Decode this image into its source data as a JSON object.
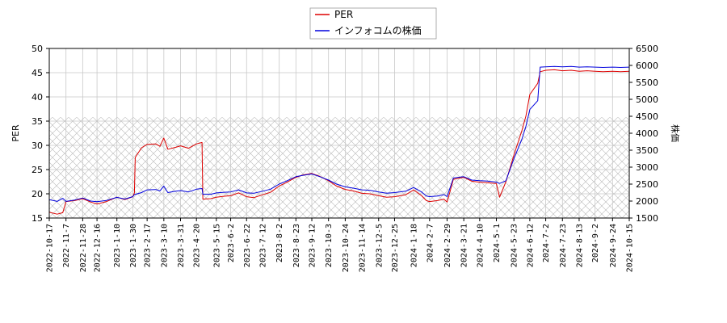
{
  "chart_data": {
    "type": "line",
    "left_axis": {
      "label": "PER",
      "range": [
        15,
        50
      ],
      "ticks": [
        "15",
        "20",
        "25",
        "30",
        "35",
        "40",
        "45",
        "50"
      ]
    },
    "right_axis": {
      "label": "株価",
      "range": [
        1500,
        6500
      ],
      "ticks": [
        "1500",
        "2000",
        "2500",
        "3000",
        "3500",
        "4000",
        "4500",
        "5000",
        "5500",
        "6000",
        "6500"
      ]
    },
    "x_ticks": [
      "2022-10-17",
      "2022-11-7",
      "2022-11-28",
      "2022-12-16",
      "2023-1-10",
      "2023-1-30",
      "2023-2-17",
      "2023-3-10",
      "2023-3-31",
      "2023-4-20",
      "2023-5-15",
      "2023-6-2",
      "2023-6-22",
      "2023-7-12",
      "2023-8-2",
      "2023-8-23",
      "2023-9-12",
      "2023-10-3",
      "2023-10-24",
      "2023-11-14",
      "2023-12-5",
      "2023-12-25",
      "2024-1-18",
      "2024-2-7",
      "2024-2-29",
      "2024-3-21",
      "2024-4-10",
      "2024-5-1",
      "2024-5-23",
      "2024-6-12",
      "2024-7-2",
      "2024-7-23",
      "2024-8-13",
      "2024-9-2",
      "2024-9-24",
      "2024-10-15"
    ],
    "grid": true,
    "shaded_band": {
      "axis": "left",
      "range": [
        15,
        35.8
      ],
      "pattern": "crosshatch"
    },
    "legend": {
      "position": "top-center"
    },
    "colors": {
      "per": "#dd0000",
      "price": "#0000dd"
    },
    "series": [
      {
        "name": "PER",
        "axis": "left",
        "color": "#dd0000",
        "points": [
          [
            "2022-10-17",
            16.2
          ],
          [
            "2022-10-27",
            15.8
          ],
          [
            "2022-11-3",
            16.1
          ],
          [
            "2022-11-7",
            18.4
          ],
          [
            "2022-11-18",
            18.6
          ],
          [
            "2022-11-28",
            19.0
          ],
          [
            "2022-12-8",
            18.3
          ],
          [
            "2022-12-16",
            17.9
          ],
          [
            "2022-12-28",
            18.4
          ],
          [
            "2023-1-10",
            19.3
          ],
          [
            "2023-1-20",
            18.8
          ],
          [
            "2023-1-30",
            19.4
          ],
          [
            "2023-2-1",
            20.2
          ],
          [
            "2023-2-2",
            27.5
          ],
          [
            "2023-2-10",
            29.5
          ],
          [
            "2023-2-17",
            30.2
          ],
          [
            "2023-2-28",
            30.3
          ],
          [
            "2023-3-5",
            29.8
          ],
          [
            "2023-3-10",
            31.5
          ],
          [
            "2023-3-15",
            29.2
          ],
          [
            "2023-3-25",
            29.6
          ],
          [
            "2023-3-31",
            29.9
          ],
          [
            "2023-4-10",
            29.4
          ],
          [
            "2023-4-20",
            30.3
          ],
          [
            "2023-4-27",
            30.6
          ],
          [
            "2023-4-28",
            18.9
          ],
          [
            "2023-5-8",
            19.0
          ],
          [
            "2023-5-15",
            19.3
          ],
          [
            "2023-5-25",
            19.5
          ],
          [
            "2023-6-2",
            19.6
          ],
          [
            "2023-6-12",
            20.2
          ],
          [
            "2023-6-22",
            19.4
          ],
          [
            "2023-7-1",
            19.2
          ],
          [
            "2023-7-12",
            19.8
          ],
          [
            "2023-7-22",
            20.3
          ],
          [
            "2023-8-2",
            21.6
          ],
          [
            "2023-8-12",
            22.4
          ],
          [
            "2023-8-23",
            23.4
          ],
          [
            "2023-9-1",
            23.9
          ],
          [
            "2023-9-12",
            24.2
          ],
          [
            "2023-9-22",
            23.6
          ],
          [
            "2023-10-3",
            22.7
          ],
          [
            "2023-10-13",
            21.6
          ],
          [
            "2023-10-24",
            20.9
          ],
          [
            "2023-11-3",
            20.6
          ],
          [
            "2023-11-14",
            20.1
          ],
          [
            "2023-11-24",
            20.0
          ],
          [
            "2023-12-5",
            19.6
          ],
          [
            "2023-12-15",
            19.3
          ],
          [
            "2023-12-25",
            19.4
          ],
          [
            "2024-1-8",
            19.8
          ],
          [
            "2024-1-18",
            20.8
          ],
          [
            "2024-1-28",
            19.6
          ],
          [
            "2024-2-3",
            18.6
          ],
          [
            "2024-2-7",
            18.4
          ],
          [
            "2024-2-17",
            18.6
          ],
          [
            "2024-2-25",
            18.9
          ],
          [
            "2024-2-29",
            18.3
          ],
          [
            "2024-3-8",
            23.0
          ],
          [
            "2024-3-21",
            23.4
          ],
          [
            "2024-3-31",
            22.6
          ],
          [
            "2024-4-10",
            22.4
          ],
          [
            "2024-4-20",
            22.3
          ],
          [
            "2024-5-1",
            22.1
          ],
          [
            "2024-5-5",
            19.3
          ],
          [
            "2024-5-13",
            22.5
          ],
          [
            "2024-5-23",
            28.0
          ],
          [
            "2024-6-2",
            33.0
          ],
          [
            "2024-6-7",
            36.0
          ],
          [
            "2024-6-12",
            40.5
          ],
          [
            "2024-6-22",
            42.8
          ],
          [
            "2024-6-25",
            45.2
          ],
          [
            "2024-7-2",
            45.5
          ],
          [
            "2024-7-13",
            45.6
          ],
          [
            "2024-7-23",
            45.4
          ],
          [
            "2024-8-3",
            45.5
          ],
          [
            "2024-8-13",
            45.3
          ],
          [
            "2024-8-23",
            45.4
          ],
          [
            "2024-9-2",
            45.3
          ],
          [
            "2024-9-12",
            45.2
          ],
          [
            "2024-9-24",
            45.3
          ],
          [
            "2024-10-4",
            45.2
          ],
          [
            "2024-10-15",
            45.3
          ]
        ]
      },
      {
        "name": "インフォコムの株価",
        "axis": "right",
        "color": "#0000dd",
        "points": [
          [
            "2022-10-17",
            2040
          ],
          [
            "2022-10-27",
            1990
          ],
          [
            "2022-11-3",
            2080
          ],
          [
            "2022-11-7",
            1990
          ],
          [
            "2022-11-18",
            2030
          ],
          [
            "2022-11-28",
            2090
          ],
          [
            "2022-12-8",
            2000
          ],
          [
            "2022-12-16",
            1980
          ],
          [
            "2022-12-28",
            2020
          ],
          [
            "2023-1-10",
            2110
          ],
          [
            "2023-1-20",
            2060
          ],
          [
            "2023-1-30",
            2130
          ],
          [
            "2023-2-1",
            2190
          ],
          [
            "2023-2-10",
            2250
          ],
          [
            "2023-2-17",
            2330
          ],
          [
            "2023-2-28",
            2340
          ],
          [
            "2023-3-5",
            2300
          ],
          [
            "2023-3-10",
            2440
          ],
          [
            "2023-3-15",
            2250
          ],
          [
            "2023-3-25",
            2290
          ],
          [
            "2023-3-31",
            2310
          ],
          [
            "2023-4-10",
            2270
          ],
          [
            "2023-4-20",
            2350
          ],
          [
            "2023-4-27",
            2370
          ],
          [
            "2023-4-28",
            2200
          ],
          [
            "2023-5-8",
            2200
          ],
          [
            "2023-5-15",
            2240
          ],
          [
            "2023-5-25",
            2260
          ],
          [
            "2023-6-2",
            2270
          ],
          [
            "2023-6-12",
            2330
          ],
          [
            "2023-6-22",
            2240
          ],
          [
            "2023-7-1",
            2230
          ],
          [
            "2023-7-12",
            2290
          ],
          [
            "2023-7-22",
            2350
          ],
          [
            "2023-8-2",
            2500
          ],
          [
            "2023-8-12",
            2600
          ],
          [
            "2023-8-23",
            2720
          ],
          [
            "2023-9-1",
            2760
          ],
          [
            "2023-9-12",
            2800
          ],
          [
            "2023-9-22",
            2720
          ],
          [
            "2023-10-3",
            2620
          ],
          [
            "2023-10-13",
            2500
          ],
          [
            "2023-10-24",
            2420
          ],
          [
            "2023-11-3",
            2380
          ],
          [
            "2023-11-14",
            2330
          ],
          [
            "2023-11-24",
            2320
          ],
          [
            "2023-12-5",
            2270
          ],
          [
            "2023-12-15",
            2230
          ],
          [
            "2023-12-25",
            2250
          ],
          [
            "2024-1-8",
            2290
          ],
          [
            "2024-1-18",
            2400
          ],
          [
            "2024-1-28",
            2270
          ],
          [
            "2024-2-3",
            2150
          ],
          [
            "2024-2-7",
            2130
          ],
          [
            "2024-2-17",
            2150
          ],
          [
            "2024-2-25",
            2190
          ],
          [
            "2024-2-29",
            2130
          ],
          [
            "2024-3-8",
            2680
          ],
          [
            "2024-3-21",
            2720
          ],
          [
            "2024-3-31",
            2620
          ],
          [
            "2024-4-10",
            2600
          ],
          [
            "2024-4-20",
            2590
          ],
          [
            "2024-5-1",
            2560
          ],
          [
            "2024-5-5",
            2520
          ],
          [
            "2024-5-13",
            2600
          ],
          [
            "2024-5-23",
            3250
          ],
          [
            "2024-6-2",
            3820
          ],
          [
            "2024-6-7",
            4200
          ],
          [
            "2024-6-12",
            4700
          ],
          [
            "2024-6-22",
            4960
          ],
          [
            "2024-6-25",
            5950
          ],
          [
            "2024-7-2",
            5960
          ],
          [
            "2024-7-13",
            5970
          ],
          [
            "2024-7-23",
            5960
          ],
          [
            "2024-8-3",
            5970
          ],
          [
            "2024-8-13",
            5950
          ],
          [
            "2024-8-23",
            5960
          ],
          [
            "2024-9-2",
            5950
          ],
          [
            "2024-9-12",
            5940
          ],
          [
            "2024-9-24",
            5950
          ],
          [
            "2024-10-4",
            5940
          ],
          [
            "2024-10-15",
            5950
          ]
        ]
      }
    ]
  }
}
